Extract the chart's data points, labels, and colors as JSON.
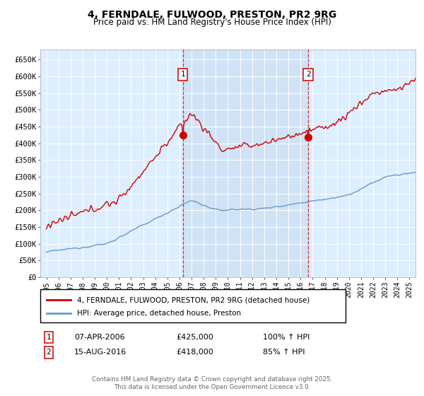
{
  "title": "4, FERNDALE, FULWOOD, PRESTON, PR2 9RG",
  "subtitle": "Price paid vs. HM Land Registry's House Price Index (HPI)",
  "legend_line1": "4, FERNDALE, FULWOOD, PRESTON, PR2 9RG (detached house)",
  "legend_line2": "HPI: Average price, detached house, Preston",
  "annotation1_label": "1",
  "annotation1_date": "07-APR-2006",
  "annotation1_price": "£425,000",
  "annotation1_pct": "100% ↑ HPI",
  "annotation2_label": "2",
  "annotation2_date": "15-AUG-2016",
  "annotation2_price": "£418,000",
  "annotation2_pct": "85% ↑ HPI",
  "footer": "Contains HM Land Registry data © Crown copyright and database right 2025.\nThis data is licensed under the Open Government Licence v3.0.",
  "vline1_x": 2006.27,
  "vline2_x": 2016.63,
  "sale1_x": 2006.27,
  "sale1_y": 425000,
  "sale2_x": 2016.63,
  "sale2_y": 418000,
  "red_color": "#cc0000",
  "blue_color": "#6699cc",
  "shade_color": "#ddeeff",
  "bg_color": "#ddeeff",
  "ylim_min": 0,
  "ylim_max": 680000,
  "xlim_min": 1994.5,
  "xlim_max": 2025.5,
  "ytick_step": 50000,
  "xticks": [
    1995,
    1996,
    1997,
    1998,
    1999,
    2000,
    2001,
    2002,
    2003,
    2004,
    2005,
    2006,
    2007,
    2008,
    2009,
    2010,
    2011,
    2012,
    2013,
    2014,
    2015,
    2016,
    2017,
    2018,
    2019,
    2020,
    2021,
    2022,
    2023,
    2024,
    2025
  ]
}
